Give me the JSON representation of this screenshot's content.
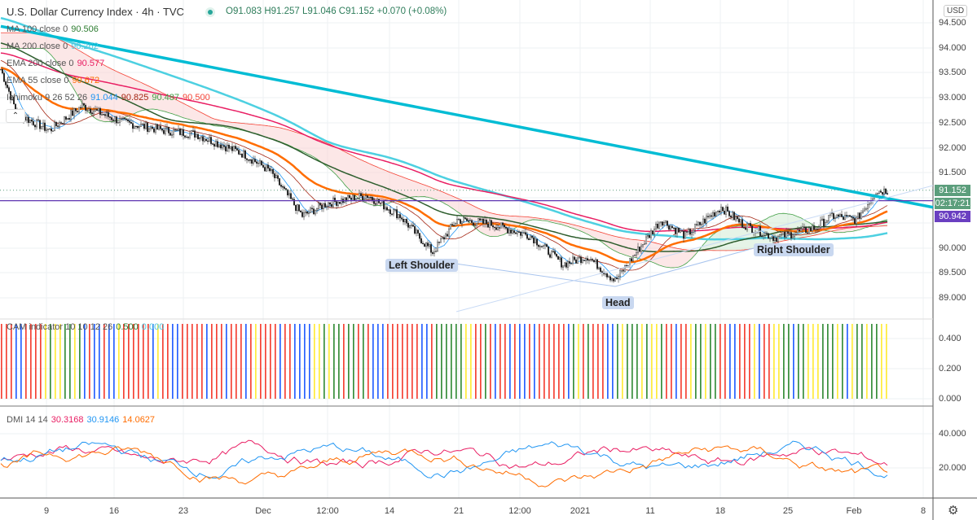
{
  "header": {
    "title": "U.S. Dollar Currency Index · 4h · TVC",
    "open": "O91.083",
    "high": "H91.257",
    "low": "L91.046",
    "close": "C91.152",
    "change": "+0.070 (+0.08%)"
  },
  "legends": {
    "ma100": {
      "label": "MA 100 close 0",
      "value": "90.506",
      "color": "#2e7d32"
    },
    "ma200": {
      "label": "MA 200 close 0",
      "value": "90.262",
      "color": "#4dd0e1"
    },
    "ema200": {
      "label": "EMA 200 close 0",
      "value": "90.577",
      "color": "#e91e63"
    },
    "ema55": {
      "label": "EMA 55 close 0",
      "value": "90.672",
      "color": "#ff6d00"
    },
    "ichimoku": {
      "label": "Ichimoku 9 26 52 26",
      "v1": "91.044",
      "v2": "90.825",
      "v3": "90.487",
      "v4": "90.500"
    },
    "cam": {
      "label": "CAM indicator 10 10 12 26",
      "v1": "0.500",
      "v2": "0.000"
    },
    "dmi": {
      "label": "DMI 14 14",
      "v1": "30.3168",
      "v2": "30.9146",
      "v3": "14.0627"
    }
  },
  "price_axis": {
    "currency": "USD",
    "ticks": [
      "94.500",
      "94.000",
      "93.500",
      "93.000",
      "92.500",
      "92.000",
      "91.500",
      "91.000",
      "90.500",
      "90.000",
      "89.500",
      "89.000"
    ],
    "last_price": "91.152",
    "countdown": "02:17:21",
    "hline_price": "90.942"
  },
  "cam_axis": [
    "0.400",
    "0.200",
    "0.000"
  ],
  "dmi_axis": [
    "40.000",
    "20.000"
  ],
  "time_axis": [
    "9",
    "16",
    "23",
    "Dec",
    "12:00",
    "14",
    "21",
    "12:00",
    "2021",
    "11",
    "18",
    "25",
    "Feb",
    "8"
  ],
  "annotations": {
    "left": "Left Shoulder",
    "head": "Head",
    "right": "Right Shoulder"
  },
  "chart_data": {
    "type": "candlestick",
    "title": "U.S. Dollar Currency Index · 4h · TVC",
    "ylim": [
      88.8,
      94.6
    ],
    "close_keypoints": [
      [
        0,
        93.57
      ],
      [
        10,
        92.68
      ],
      [
        30,
        92.35
      ],
      [
        50,
        92.84
      ],
      [
        75,
        92.51
      ],
      [
        100,
        92.35
      ],
      [
        120,
        92.27
      ],
      [
        150,
        91.86
      ],
      [
        165,
        91.54
      ],
      [
        185,
        90.64
      ],
      [
        200,
        90.89
      ],
      [
        225,
        91.05
      ],
      [
        245,
        90.64
      ],
      [
        265,
        89.91
      ],
      [
        280,
        90.56
      ],
      [
        300,
        90.48
      ],
      [
        325,
        90.24
      ],
      [
        345,
        89.67
      ],
      [
        360,
        89.83
      ],
      [
        377,
        89.34
      ],
      [
        390,
        89.91
      ],
      [
        405,
        90.56
      ],
      [
        420,
        90.24
      ],
      [
        442,
        90.81
      ],
      [
        455,
        90.48
      ],
      [
        475,
        90.2
      ],
      [
        500,
        90.4
      ],
      [
        510,
        90.64
      ],
      [
        525,
        90.56
      ],
      [
        537,
        91.13
      ],
      [
        544,
        91.15
      ]
    ],
    "trendline": [
      [
        0,
        94.43
      ],
      [
        572,
        90.81
      ]
    ],
    "hline": 90.942,
    "dmi_last": {
      "plus": 30.3168,
      "minus": 30.9146,
      "adx": 14.0627
    }
  }
}
